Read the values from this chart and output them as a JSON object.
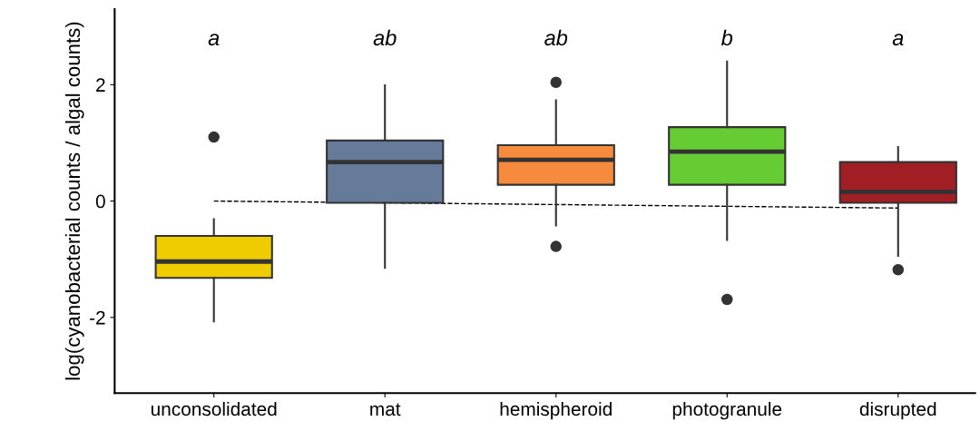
{
  "chart_data": {
    "type": "box",
    "ylabel": "log(cyanobacterial counts / algal counts)",
    "categories": [
      "unconsolidated",
      "mat",
      "hemispheroid",
      "photogranule",
      "disrupted"
    ],
    "colors": [
      "#eecc00",
      "#667a99",
      "#f68a3d",
      "#66cc33",
      "#a01e24"
    ],
    "boxes": [
      {
        "low": -2.07,
        "q1": -1.32,
        "median": -1.04,
        "q3": -0.6,
        "high": -0.31,
        "outliers": [
          1.1
        ]
      },
      {
        "low": -1.15,
        "q1": -0.03,
        "median": 0.67,
        "q3": 1.04,
        "high": 1.99
      },
      {
        "low": -0.42,
        "q1": 0.28,
        "median": 0.71,
        "q3": 0.96,
        "high": 1.73,
        "outliers": [
          2.04,
          -0.78
        ]
      },
      {
        "low": -0.67,
        "q1": 0.28,
        "median": 0.85,
        "q3": 1.27,
        "high": 2.4,
        "outliers": [
          -1.69
        ]
      },
      {
        "low": -0.94,
        "q1": -0.03,
        "median": 0.16,
        "q3": 0.67,
        "high": 0.93,
        "outliers": [
          -1.18
        ]
      }
    ],
    "series": [
      {
        "type": "line",
        "x": [
          "unconsolidated",
          "disrupted"
        ],
        "values": [
          0.0,
          -0.12
        ],
        "color": "#000000",
        "line_style": "dashed"
      }
    ],
    "annotations": [
      "a",
      "ab",
      "ab",
      "b",
      "a"
    ],
    "ylim": [
      -3.3,
      3.3
    ],
    "yticks": [
      -2,
      0,
      2
    ],
    "grid": false,
    "legend": false
  }
}
